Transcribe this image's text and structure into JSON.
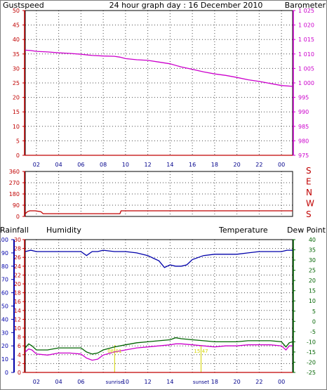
{
  "colors": {
    "gust": "#c00000",
    "baro": "#cc00cc",
    "title": "#00008b",
    "humidity": "#0000aa",
    "temperature": "#006400",
    "dewpoint": "#cc00cc",
    "wind": "#c00000",
    "sun": "#d4d400",
    "grid": "#000000"
  },
  "chart_data": [
    {
      "type": "line",
      "title": "24 hour graph day : 16 December 2010",
      "left_label": "Gustspeed",
      "right_label": "Barometer",
      "x_ticks": [
        "02",
        "04",
        "06",
        "08",
        "10",
        "12",
        "14",
        "16",
        "18",
        "20",
        "22",
        "00"
      ],
      "ylim_left": [
        0,
        50
      ],
      "yticks_left": [
        "50",
        "45",
        "40",
        "35",
        "30",
        "25",
        "20",
        "15",
        "10",
        "5",
        "0"
      ],
      "ylim_right": [
        975,
        1025
      ],
      "yticks_right": [
        "1 025",
        "1 020",
        "1 015",
        "1 010",
        "1 005",
        "1 000",
        "995",
        "990",
        "985",
        "980",
        "975"
      ],
      "grid": true,
      "series": [
        {
          "name": "Gustspeed",
          "axis": "left",
          "x": [
            0,
            24
          ],
          "y": [
            0,
            0
          ]
        },
        {
          "name": "Barometer",
          "axis": "right",
          "x": [
            0,
            0.5,
            1,
            2,
            3,
            4,
            5,
            6,
            7,
            8,
            8.5,
            9,
            10,
            11,
            12,
            13,
            14,
            15,
            16,
            17,
            18,
            19,
            20,
            21,
            22,
            23,
            24
          ],
          "y": [
            1011.3,
            1011.2,
            1010.9,
            1010.7,
            1010.4,
            1010.2,
            1009.9,
            1009.5,
            1009.3,
            1009.2,
            1008.9,
            1008.4,
            1008.0,
            1007.8,
            1007.2,
            1006.6,
            1005.5,
            1004.7,
            1003.8,
            1003.1,
            1002.6,
            1001.9,
            1001.1,
            1000.5,
            999.8,
            999.1,
            998.8
          ]
        }
      ]
    },
    {
      "type": "line",
      "left_ticks": [
        "360",
        "270",
        "180",
        "90",
        "0"
      ],
      "ylim": [
        0,
        360
      ],
      "right_labels": [
        "S",
        "E",
        "N",
        "W",
        "S"
      ],
      "grid": true,
      "series": [
        {
          "name": "Wind direction",
          "x": [
            0,
            0.2,
            0.4,
            0.9,
            1.4,
            1.6,
            8.5,
            8.6,
            24
          ],
          "y": [
            22,
            38,
            45,
            45,
            38,
            22,
            22,
            45,
            45
          ]
        }
      ]
    },
    {
      "type": "line",
      "left_label": "Rainfall",
      "humidity_label": "Humidity",
      "temperature_label": "Temperature",
      "dewpoint_label": "Dew Point",
      "rain_ticks": [
        "100",
        "90",
        "80",
        "70",
        "60",
        "50",
        "40",
        "30",
        "20",
        "10",
        "0"
      ],
      "humidity_ticks": [
        "30",
        "28",
        "26",
        "24",
        "22",
        "20",
        "18",
        "16",
        "14",
        "12",
        "10",
        "8",
        "6",
        "4",
        "2",
        "0"
      ],
      "temp_ticks": [
        "40",
        "35",
        "30",
        "25",
        "20",
        "15",
        "10",
        "5",
        "0",
        "-5",
        "-10",
        "-15",
        "-20",
        "-25"
      ],
      "ylim_humidity": [
        0,
        100
      ],
      "ylim_temp": [
        -25,
        40
      ],
      "x_ticks": [
        "02",
        "04",
        "06",
        "08",
        "10",
        "12",
        "14",
        "16",
        "18",
        "20",
        "22",
        "00"
      ],
      "sunrise_label": "sunrise",
      "sunset_label": "sunset",
      "sunrise_time": "08:01",
      "sunset_time": "15:47",
      "sunrise_hour": 8.02,
      "sunset_hour": 15.78,
      "grid": true,
      "series": [
        {
          "name": "Rainfall",
          "axis": "rain",
          "x": [
            0,
            24
          ],
          "y": [
            0,
            0
          ]
        },
        {
          "name": "Humidity",
          "axis": "humidity",
          "x": [
            0,
            0.5,
            1,
            2,
            3,
            4,
            5,
            5.5,
            6,
            6.5,
            7,
            8,
            9,
            10,
            11,
            11.5,
            12,
            12.5,
            13,
            13.5,
            14,
            14.5,
            15,
            16,
            17,
            18,
            19,
            20,
            21,
            22,
            23,
            23.5,
            24
          ],
          "y": [
            91,
            92,
            91,
            91,
            91,
            91,
            91,
            88,
            91,
            91,
            92,
            91,
            91,
            90,
            88,
            86,
            84,
            79,
            81,
            80,
            80,
            81,
            85,
            88,
            89,
            89,
            89,
            90,
            91,
            91,
            91,
            92,
            92
          ]
        },
        {
          "name": "Temperature",
          "axis": "temp",
          "x": [
            0,
            0.3,
            0.6,
            1,
            2,
            3,
            4,
            5,
            5.5,
            6,
            6.5,
            7,
            8,
            9,
            10,
            11,
            12,
            13,
            13.5,
            14,
            15,
            16,
            17,
            18,
            19,
            20,
            21,
            22,
            23,
            23.4,
            23.7,
            24
          ],
          "y": [
            -13,
            -11,
            -12,
            -14,
            -14,
            -13,
            -13,
            -13,
            -15,
            -16,
            -15.5,
            -14,
            -12.5,
            -11.5,
            -10.5,
            -10,
            -9.5,
            -9,
            -8,
            -8.5,
            -9,
            -9.5,
            -10,
            -10,
            -10,
            -9.5,
            -9.5,
            -9.5,
            -10,
            -12.5,
            -10.5,
            -10
          ]
        },
        {
          "name": "Dew Point",
          "axis": "temp",
          "x": [
            0,
            0.3,
            0.6,
            1,
            2,
            3,
            4,
            5,
            5.5,
            6,
            6.5,
            7,
            8,
            9,
            10,
            11,
            12,
            13,
            13.5,
            14,
            15,
            16,
            17,
            18,
            19,
            20,
            21,
            22,
            23,
            23.4,
            23.7,
            24
          ],
          "y": [
            -15,
            -13.5,
            -14,
            -16,
            -16.5,
            -15.5,
            -15.5,
            -16,
            -18,
            -19,
            -18.5,
            -16.5,
            -15,
            -14,
            -13,
            -12.5,
            -12,
            -11.5,
            -11,
            -11,
            -11.5,
            -12,
            -12.5,
            -12,
            -12,
            -11.5,
            -11.5,
            -11.5,
            -12,
            -14,
            -12,
            -12
          ]
        }
      ]
    }
  ]
}
